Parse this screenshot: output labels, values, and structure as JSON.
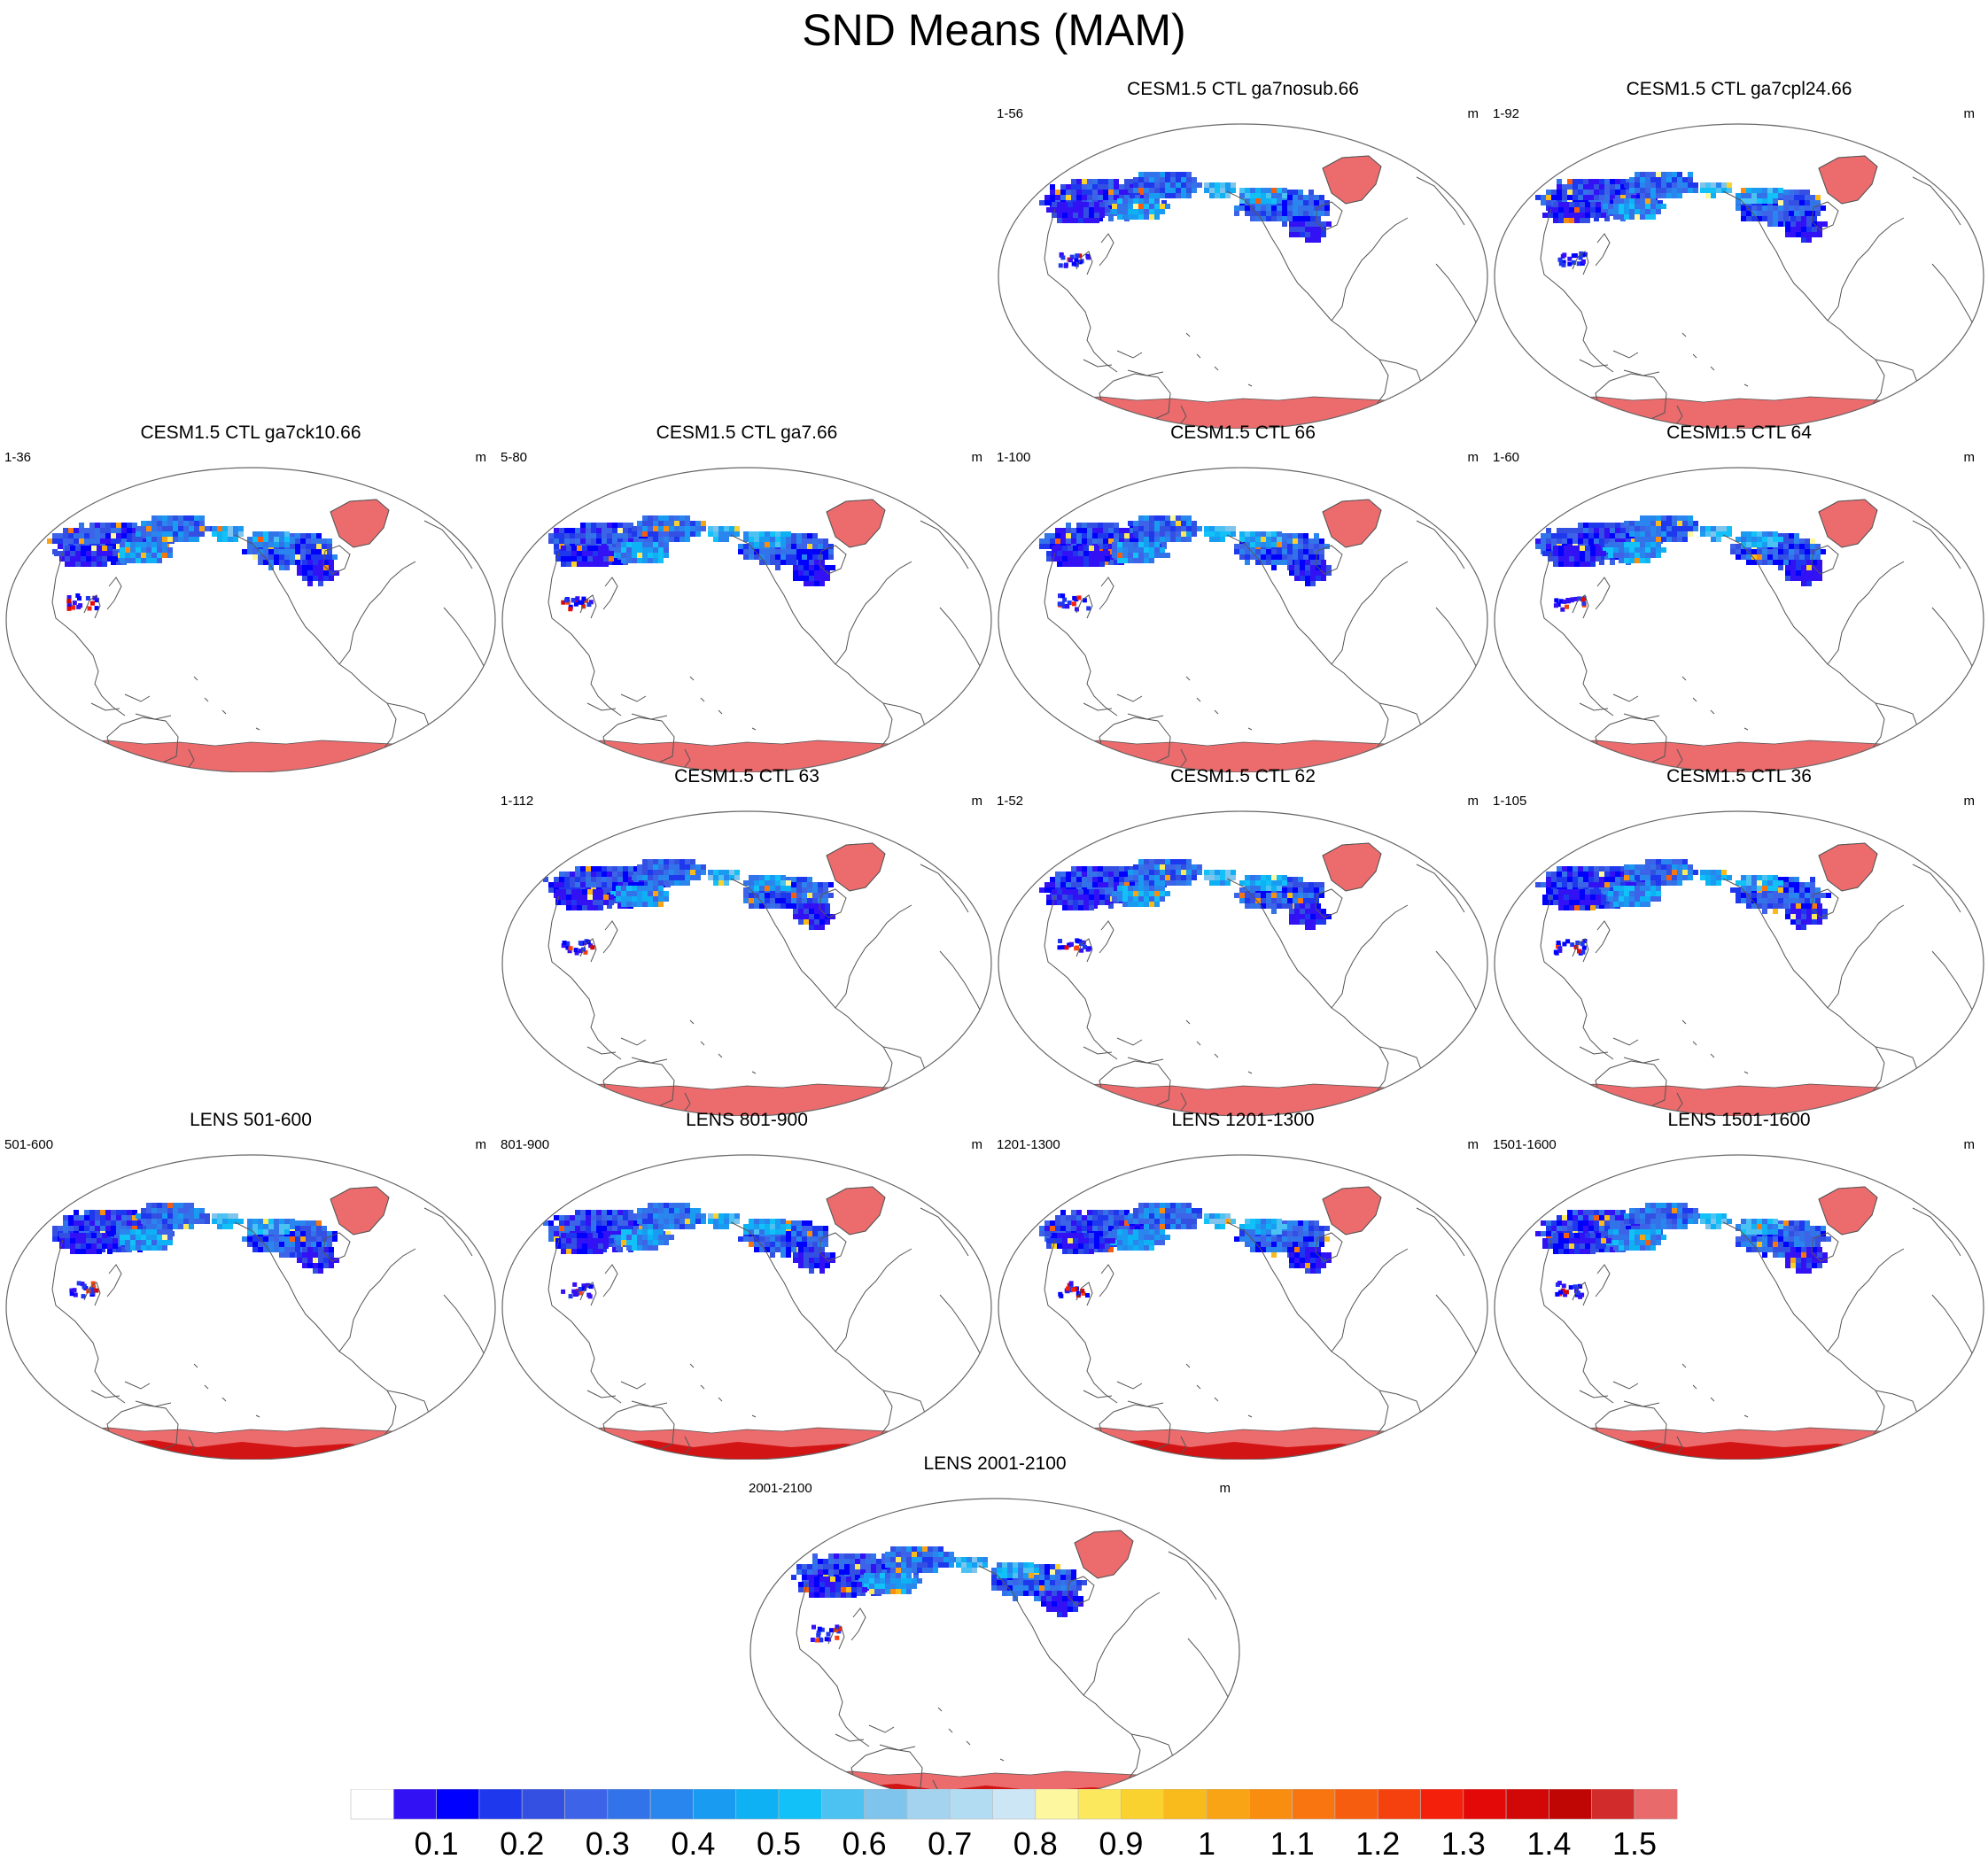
{
  "title": "SND Means (MAM)",
  "colors": {
    "coastline": "#555555",
    "border": "#666666",
    "land": "#ffffff",
    "ice_sheet": "#ec6b6d",
    "ice_sheet_deep": "#d21414",
    "arctic_warm": "#e87070"
  },
  "panels": [
    {
      "title": "CESM1.5 CTL ga7nosub.66",
      "left": "1-56",
      "right": "m",
      "lens": false
    },
    {
      "title": "CESM1.5 CTL ga7cpl24.66",
      "left": "1-92",
      "right": "m",
      "lens": false
    },
    {
      "title": "CESM1.5 CTL ga7ck10.66",
      "left": "1-36",
      "right": "m",
      "lens": false
    },
    {
      "title": "CESM1.5 CTL ga7.66",
      "left": "5-80",
      "right": "m",
      "lens": false
    },
    {
      "title": "CESM1.5 CTL 66",
      "left": "1-100",
      "right": "m",
      "lens": false
    },
    {
      "title": "CESM1.5 CTL 64",
      "left": "1-60",
      "right": "m",
      "lens": false
    },
    {
      "title": "CESM1.5 CTL 63",
      "left": "1-112",
      "right": "m",
      "lens": false
    },
    {
      "title": "CESM1.5 CTL 62",
      "left": "1-52",
      "right": "m",
      "lens": false
    },
    {
      "title": "CESM1.5 CTL 36",
      "left": "1-105",
      "right": "m",
      "lens": false
    },
    {
      "title": "LENS 501-600",
      "left": "501-600",
      "right": "m",
      "lens": true
    },
    {
      "title": "LENS 801-900",
      "left": "801-900",
      "right": "m",
      "lens": true
    },
    {
      "title": "LENS 1201-1300",
      "left": "1201-1300",
      "right": "m",
      "lens": true
    },
    {
      "title": "LENS 1501-1600",
      "left": "1501-1600",
      "right": "m",
      "lens": true
    },
    {
      "title": "LENS 2001-2100",
      "left": "2001-2100",
      "right": "m",
      "lens": true
    }
  ],
  "colorbar": {
    "colors": [
      "#ffffff",
      "#3311f5",
      "#0000ff",
      "#1e38ee",
      "#3350e3",
      "#3d63e8",
      "#3373ea",
      "#2a86ef",
      "#1a9bf2",
      "#0fb1f5",
      "#11c1f7",
      "#4cc2f3",
      "#7ec4ec",
      "#a3d3ef",
      "#b2dcf2",
      "#cde6f6",
      "#fdf7a0",
      "#fbe85c",
      "#fad230",
      "#f9bb1c",
      "#f9a414",
      "#f98d10",
      "#f8750f",
      "#f75d0e",
      "#f5410d",
      "#f5200b",
      "#e40909",
      "#d20707",
      "#c00505",
      "#d22b2b",
      "#e96a6a"
    ],
    "labels": [
      "0.1",
      "0.2",
      "0.3",
      "0.4",
      "0.5",
      "0.6",
      "0.7",
      "0.8",
      "0.9",
      "1",
      "1.1",
      "1.2",
      "1.3",
      "1.4",
      "1.5"
    ]
  }
}
